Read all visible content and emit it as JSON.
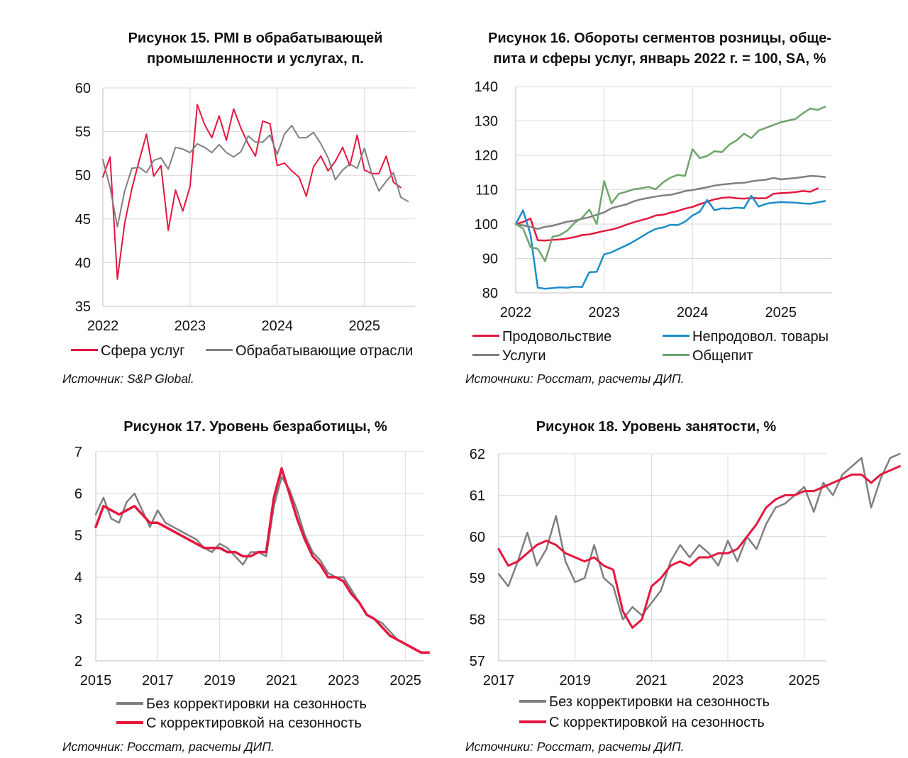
{
  "colors": {
    "red": "#e5173f",
    "gray": "#7f7f7f",
    "blue": "#1c8cc8",
    "green": "#6ea56c",
    "grid": "#d9d9d9",
    "axis": "#bfbfbf"
  },
  "panels": [
    {
      "id": "fig15",
      "title_lines": [
        "Рисунок 15. PMI в обрабатывающей",
        "промышленности и услугах, п."
      ],
      "source": "Источник: S&P Global.",
      "legend": [
        {
          "label": "Сфера услуг",
          "color": "#e5173f"
        },
        {
          "label": "Обрабатывающие отрасли",
          "color": "#7f7f7f"
        }
      ]
    },
    {
      "id": "fig16",
      "title_lines": [
        "Рисунок 16. Обороты сегментов розницы, обще-",
        "пита и сферы услуг, январь 2022 г. = 100, SA, %"
      ],
      "source": "Источники: Росстат, расчеты ДИП.",
      "legend": [
        {
          "label": "Продовольствие",
          "color": "#e5173f"
        },
        {
          "label": "Непродовол. товары",
          "color": "#1c8cc8"
        },
        {
          "label": "Услуги",
          "color": "#7f7f7f"
        },
        {
          "label": "Общепит",
          "color": "#6ea56c"
        }
      ]
    },
    {
      "id": "fig17",
      "title_lines": [
        "Рисунок 17. Уровень безработицы, %"
      ],
      "source": "Источник: Росстат, расчеты ДИП.",
      "legend": [
        {
          "label": "Без корректировки на сезонность",
          "color": "#7f7f7f"
        },
        {
          "label": "С корректировкой на сезонность",
          "color": "#e5173f"
        }
      ]
    },
    {
      "id": "fig18",
      "title_lines": [
        "Рисунок 18. Уровень занятости, %"
      ],
      "source": "Источники: Росстат, расчеты ДИП.",
      "legend": [
        {
          "label": "Без корректировки на сезонность",
          "color": "#7f7f7f"
        },
        {
          "label": "С корректировкой на сезонность",
          "color": "#e5173f"
        }
      ]
    }
  ],
  "chart_data": [
    {
      "type": "line",
      "title": "Рисунок 15. PMI в обрабатывающей промышленности и услугах, п.",
      "x_ticks": [
        "2022",
        "2023",
        "2024",
        "2025"
      ],
      "x_tick_values": [
        2022,
        2023,
        2024,
        2025
      ],
      "xlim": [
        2022.0,
        2025.58
      ],
      "ylim": [
        35,
        60
      ],
      "y_ticks": [
        35,
        40,
        45,
        50,
        55,
        60
      ],
      "grid": true,
      "legend_position": "bottom",
      "x_start": 2022.0,
      "x_step": 0.08333,
      "series": [
        {
          "name": "Сфера услуг",
          "color": "#e5173f",
          "values": [
            49.8,
            52.1,
            38.1,
            44.5,
            48.5,
            51.7,
            54.7,
            49.9,
            51.1,
            43.7,
            48.3,
            45.9,
            48.7,
            58.1,
            55.8,
            54.3,
            56.8,
            54.0,
            57.6,
            55.4,
            53.6,
            52.2,
            56.2,
            55.9,
            51.1,
            51.4,
            50.5,
            49.8,
            47.6,
            51.0,
            52.2,
            50.5,
            51.6,
            53.2,
            51.1,
            54.6,
            50.6,
            50.2,
            50.2,
            52.2,
            49.2,
            48.6
          ]
        },
        {
          "name": "Обрабатывающие отрасли",
          "color": "#7f7f7f",
          "values": [
            51.8,
            48.6,
            44.1,
            48.2,
            50.8,
            50.9,
            50.3,
            51.7,
            52.0,
            50.7,
            53.2,
            53.0,
            52.6,
            53.6,
            53.2,
            52.6,
            53.5,
            52.6,
            52.1,
            52.7,
            54.5,
            53.8,
            53.8,
            54.6,
            52.4,
            54.7,
            55.7,
            54.3,
            54.3,
            54.9,
            53.6,
            52.0,
            49.5,
            50.6,
            51.3,
            50.8,
            53.1,
            50.2,
            48.2,
            49.3,
            50.3,
            47.5,
            47.0
          ]
        }
      ]
    },
    {
      "type": "line",
      "title": "Рисунок 16. Обороты сегментов розницы, общепита и сферы услуг, январь 2022 г. = 100, SA, %",
      "x_ticks": [
        "2022",
        "2023",
        "2024",
        "2025"
      ],
      "x_tick_values": [
        2022,
        2023,
        2024,
        2025
      ],
      "xlim": [
        2022.0,
        2025.58
      ],
      "ylim": [
        80,
        140
      ],
      "y_ticks": [
        80,
        90,
        100,
        110,
        120,
        130,
        140
      ],
      "grid": true,
      "legend_position": "bottom",
      "x_start": 2022.0,
      "x_step": 0.08333,
      "series": [
        {
          "name": "Продовольствие",
          "color": "#e5173f",
          "values": [
            100.0,
            100.6,
            101.6,
            95.3,
            95.2,
            95.4,
            95.5,
            95.8,
            96.2,
            96.8,
            97.0,
            97.5,
            98.0,
            98.4,
            99.0,
            99.8,
            100.5,
            101.1,
            101.7,
            102.5,
            102.7,
            103.3,
            103.8,
            104.5,
            105.0,
            105.8,
            106.5,
            107.2,
            107.6,
            107.8,
            107.5,
            107.4,
            107.6,
            107.5,
            107.5,
            108.8,
            109.0,
            109.1,
            109.3,
            109.6,
            109.4,
            110.4
          ]
        },
        {
          "name": "Непродовол. товары",
          "color": "#1c8cc8",
          "values": [
            100.0,
            104.0,
            97.0,
            81.5,
            81.2,
            81.4,
            81.6,
            81.5,
            81.8,
            81.7,
            86.0,
            86.1,
            91.2,
            91.8,
            92.8,
            93.8,
            94.9,
            96.2,
            97.5,
            98.6,
            99.0,
            99.8,
            99.7,
            100.7,
            102.5,
            103.6,
            107.0,
            104.0,
            104.6,
            104.5,
            104.8,
            104.6,
            108.2,
            105.1,
            105.9,
            106.2,
            106.4,
            106.3,
            106.2,
            106.0,
            105.9,
            106.3,
            106.7
          ]
        },
        {
          "name": "Услуги",
          "color": "#7f7f7f",
          "values": [
            100.0,
            99.6,
            99.2,
            98.6,
            99.2,
            99.5,
            100.1,
            100.7,
            101.0,
            101.5,
            102.0,
            102.7,
            103.4,
            104.6,
            105.2,
            105.7,
            106.6,
            107.2,
            107.6,
            108.0,
            108.3,
            108.5,
            109.0,
            109.6,
            109.9,
            110.3,
            110.7,
            111.2,
            111.5,
            111.7,
            111.9,
            112.0,
            112.4,
            112.7,
            112.9,
            113.4,
            113.0,
            113.2,
            113.4,
            113.7,
            114.0,
            113.9,
            113.7
          ]
        },
        {
          "name": "Общепит",
          "color": "#6ea56c",
          "values": [
            100.0,
            98.7,
            93.3,
            92.8,
            89.2,
            96.3,
            96.8,
            98.1,
            100.4,
            101.8,
            104.2,
            100.0,
            112.5,
            106.0,
            108.8,
            109.4,
            110.1,
            110.4,
            110.8,
            110.1,
            112.1,
            113.5,
            114.3,
            114.0,
            121.8,
            119.2,
            119.8,
            121.2,
            120.9,
            123.1,
            124.3,
            126.3,
            125.0,
            127.2,
            128.0,
            128.8,
            129.6,
            130.1,
            130.6,
            132.2,
            133.6,
            133.2,
            134.1
          ]
        }
      ]
    },
    {
      "type": "line",
      "title": "Рисунок 17. Уровень безработицы, %",
      "x_ticks": [
        "2015",
        "2017",
        "2019",
        "2021",
        "2023",
        "2025"
      ],
      "x_tick_values": [
        2015,
        2017,
        2019,
        2021,
        2023,
        2025
      ],
      "xlim": [
        2015.0,
        2025.58
      ],
      "ylim": [
        2,
        7
      ],
      "y_ticks": [
        2,
        3,
        4,
        5,
        6,
        7
      ],
      "grid": true,
      "legend_position": "bottom",
      "x_start": 2015.0,
      "x_step": 0.25,
      "series": [
        {
          "name": "Без корректировки на сезонность",
          "color": "#7f7f7f",
          "values": [
            5.5,
            5.9,
            5.4,
            5.3,
            5.8,
            6.0,
            5.6,
            5.2,
            5.6,
            5.3,
            5.2,
            5.1,
            5.0,
            4.9,
            4.7,
            4.6,
            4.8,
            4.7,
            4.5,
            4.3,
            4.6,
            4.6,
            4.5,
            5.7,
            6.4,
            6.1,
            5.6,
            5.0,
            4.6,
            4.4,
            4.1,
            4.0,
            4.0,
            3.7,
            3.4,
            3.1,
            3.0,
            2.9,
            2.7,
            2.5,
            2.4,
            2.3,
            2.2,
            2.2
          ]
        },
        {
          "name": "С корректировкой на сезонность",
          "color": "#e5173f",
          "values": [
            5.2,
            5.7,
            5.6,
            5.5,
            5.6,
            5.7,
            5.5,
            5.3,
            5.3,
            5.2,
            5.1,
            5.0,
            4.9,
            4.8,
            4.7,
            4.7,
            4.7,
            4.6,
            4.6,
            4.5,
            4.5,
            4.6,
            4.6,
            5.9,
            6.6,
            6.0,
            5.4,
            4.9,
            4.5,
            4.3,
            4.0,
            4.0,
            3.9,
            3.6,
            3.4,
            3.1,
            3.0,
            2.8,
            2.6,
            2.5,
            2.4,
            2.3,
            2.2,
            2.2
          ]
        }
      ]
    },
    {
      "type": "line",
      "title": "Рисунок 18. Уровень занятости, %",
      "x_ticks": [
        "2017",
        "2019",
        "2021",
        "2023",
        "2025"
      ],
      "x_tick_values": [
        2017,
        2019,
        2021,
        2023,
        2025
      ],
      "xlim": [
        2017.0,
        2025.58
      ],
      "ylim": [
        57,
        62
      ],
      "y_ticks": [
        57,
        58,
        59,
        60,
        61,
        62
      ],
      "grid": true,
      "legend_position": "bottom",
      "x_start": 2017.0,
      "x_step": 0.25,
      "series": [
        {
          "name": "Без корректировки на сезонность",
          "color": "#7f7f7f",
          "values": [
            59.1,
            58.8,
            59.4,
            60.1,
            59.3,
            59.7,
            60.5,
            59.4,
            58.9,
            59.0,
            59.8,
            59.0,
            58.8,
            58.0,
            58.3,
            58.1,
            58.4,
            58.7,
            59.4,
            59.8,
            59.5,
            59.8,
            59.6,
            59.3,
            59.9,
            59.4,
            60.0,
            59.7,
            60.3,
            60.7,
            60.8,
            61.0,
            61.2,
            60.6,
            61.3,
            61.0,
            61.5,
            61.7,
            61.9,
            60.7,
            61.4,
            61.9,
            62.0
          ]
        },
        {
          "name": "С корректировкой на сезонность",
          "color": "#e5173f",
          "values": [
            59.7,
            59.3,
            59.4,
            59.6,
            59.8,
            59.9,
            59.8,
            59.6,
            59.5,
            59.4,
            59.5,
            59.3,
            59.2,
            58.2,
            57.8,
            58.0,
            58.8,
            59.0,
            59.3,
            59.4,
            59.3,
            59.5,
            59.5,
            59.6,
            59.6,
            59.7,
            60.0,
            60.3,
            60.7,
            60.9,
            61.0,
            61.0,
            61.1,
            61.1,
            61.2,
            61.3,
            61.4,
            61.5,
            61.5,
            61.3,
            61.5,
            61.6,
            61.7
          ]
        }
      ]
    }
  ]
}
